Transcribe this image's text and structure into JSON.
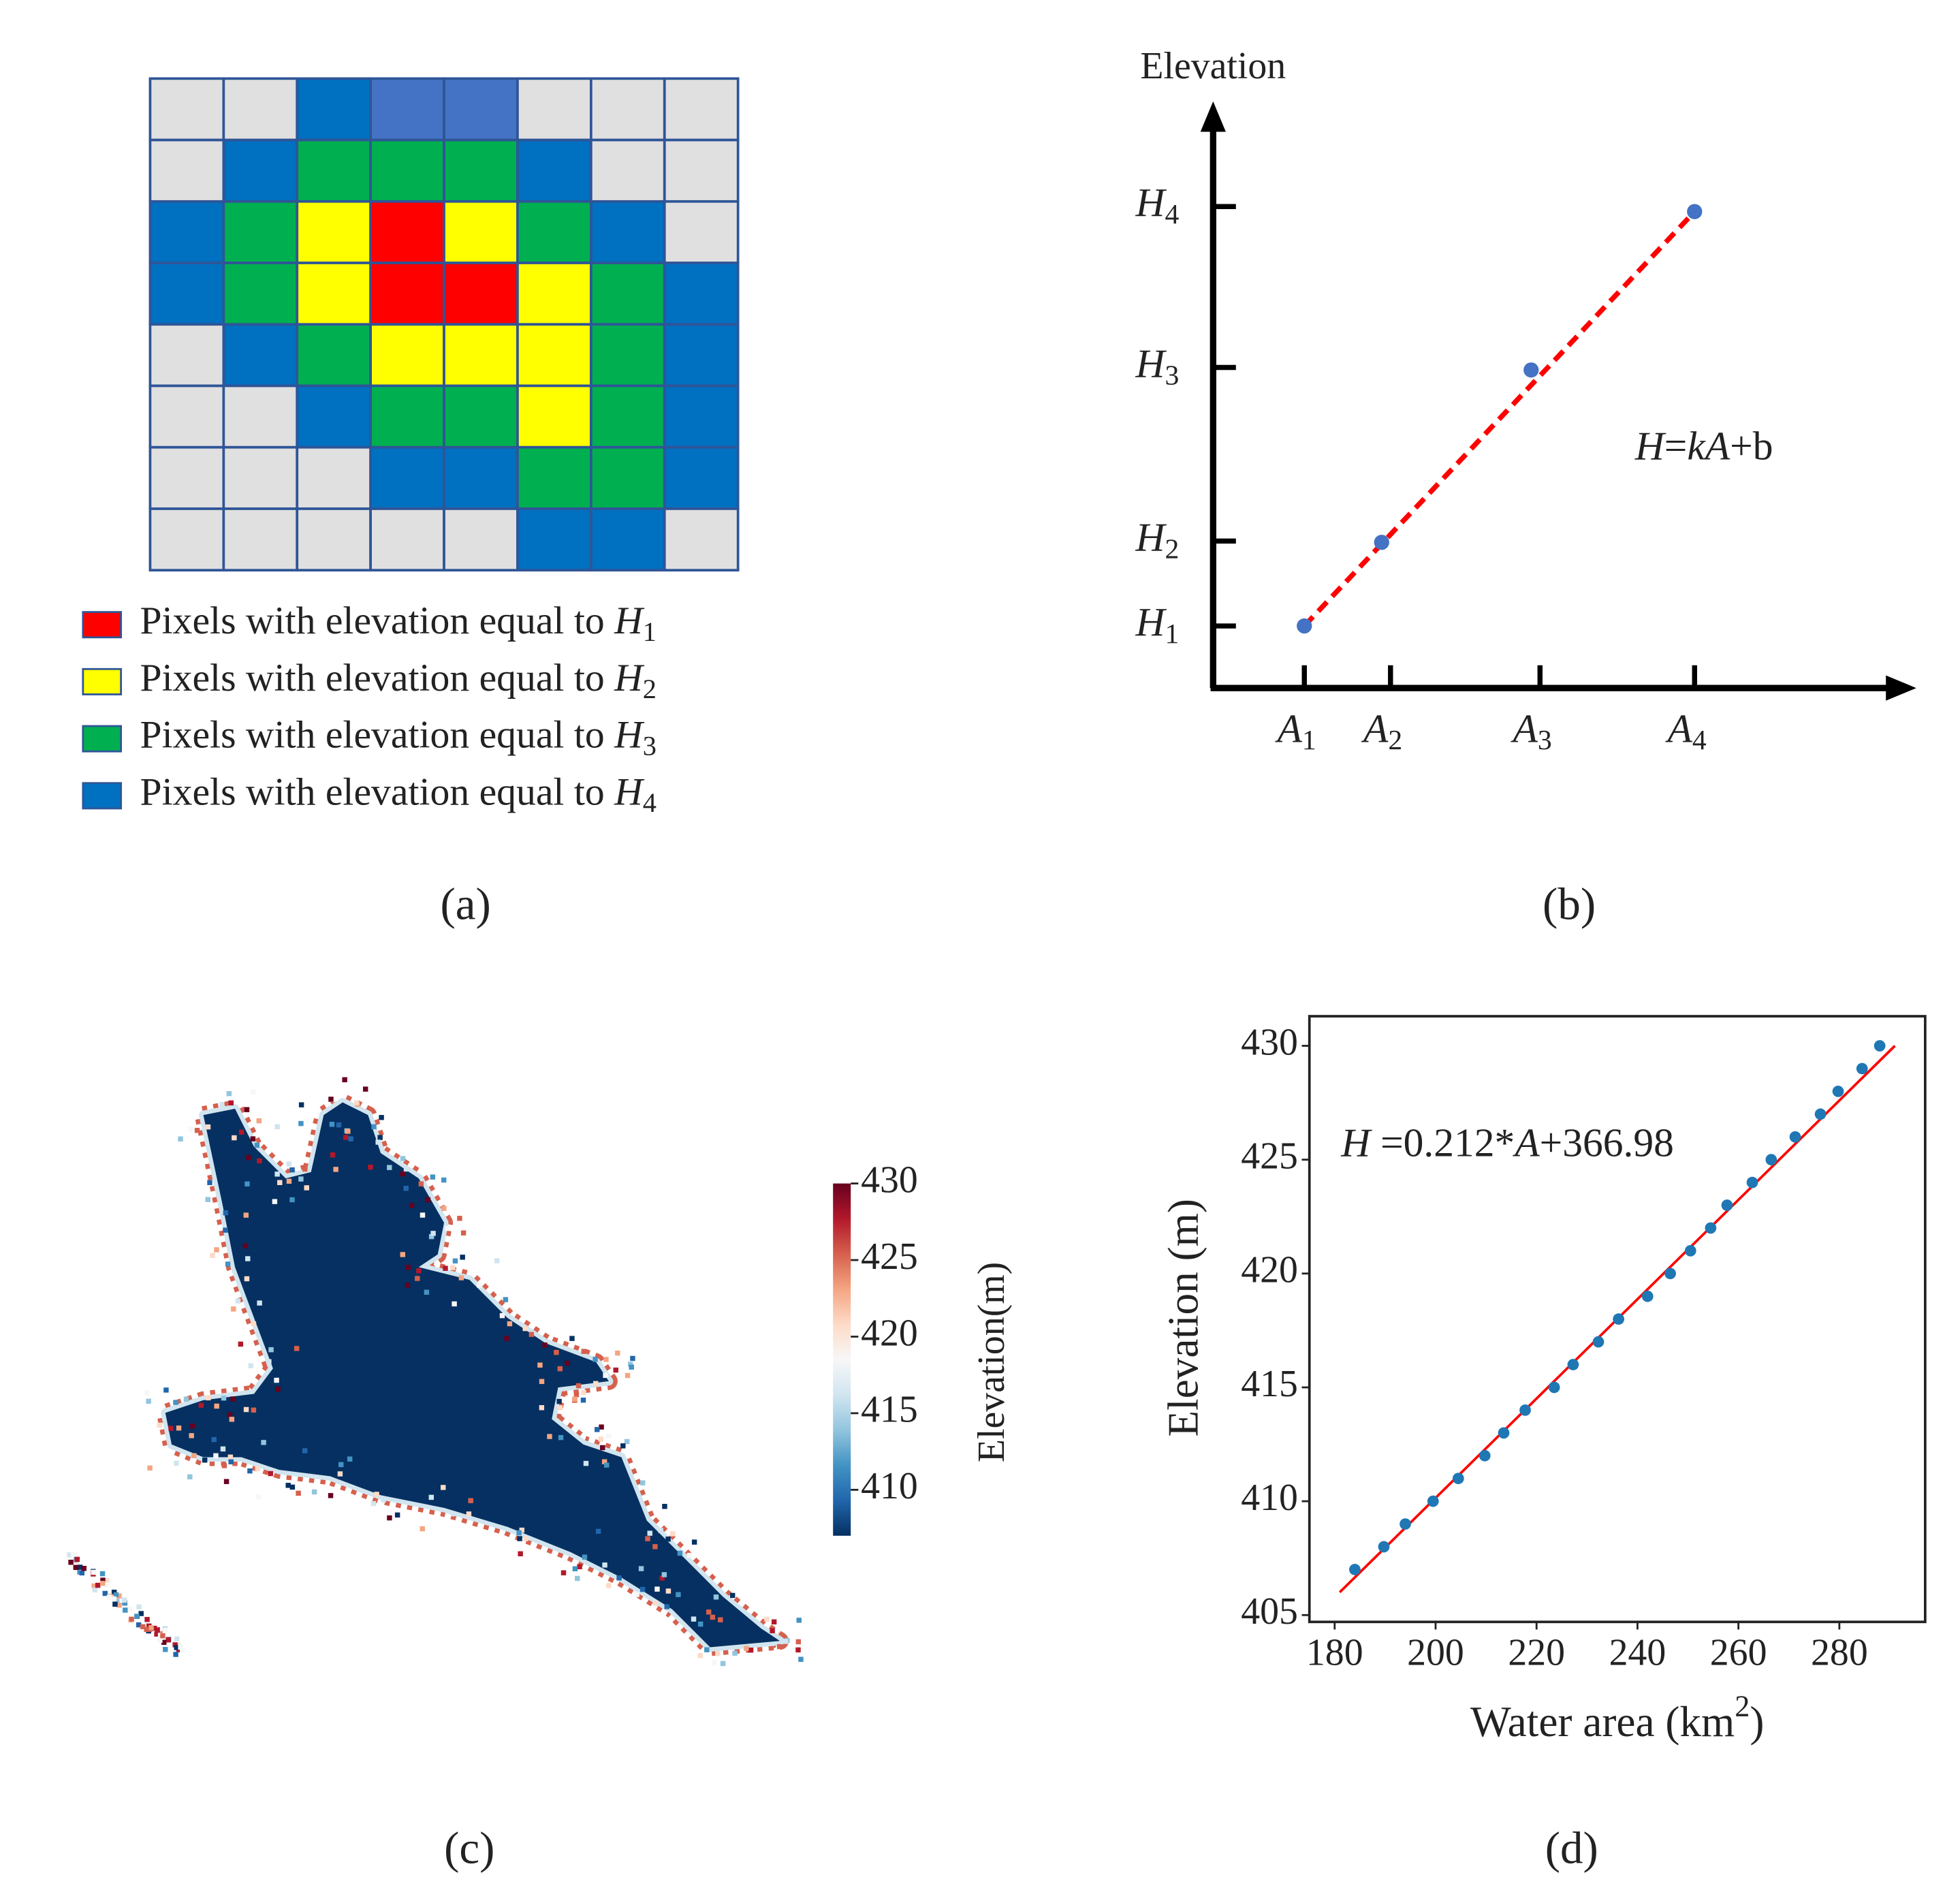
{
  "grid": {
    "label": "(a)",
    "rows": [
      [
        "#e0e0e0",
        "#e0e0e0",
        "#0070c0",
        "#4472c4",
        "#4472c4",
        "#e0e0e0",
        "#e0e0e0",
        "#e0e0e0"
      ],
      [
        "#e0e0e0",
        "#0070c0",
        "#00b050",
        "#00b050",
        "#00b050",
        "#0070c0",
        "#e0e0e0",
        "#e0e0e0"
      ],
      [
        "#0070c0",
        "#00b050",
        "#ffff00",
        "#ff0000",
        "#ffff00",
        "#00b050",
        "#0070c0",
        "#e0e0e0"
      ],
      [
        "#0070c0",
        "#00b050",
        "#ffff00",
        "#ff0000",
        "#ff0000",
        "#ffff00",
        "#00b050",
        "#0070c0"
      ],
      [
        "#e0e0e0",
        "#0070c0",
        "#00b050",
        "#ffff00",
        "#ffff00",
        "#ffff00",
        "#00b050",
        "#0070c0"
      ],
      [
        "#e0e0e0",
        "#e0e0e0",
        "#0070c0",
        "#00b050",
        "#00b050",
        "#ffff00",
        "#00b050",
        "#0070c0"
      ],
      [
        "#e0e0e0",
        "#e0e0e0",
        "#e0e0e0",
        "#0070c0",
        "#0070c0",
        "#00b050",
        "#00b050",
        "#0070c0"
      ],
      [
        "#e0e0e0",
        "#e0e0e0",
        "#e0e0e0",
        "#e0e0e0",
        "#e0e0e0",
        "#0070c0",
        "#0070c0",
        "#e0e0e0"
      ]
    ],
    "legend": [
      {
        "color": "#ff0000",
        "parts": [
          {
            "text": "Pixels with elevation equal to "
          },
          {
            "text": "H",
            "italic": true
          },
          {
            "text": "1",
            "sub": true
          }
        ]
      },
      {
        "color": "#ffff00",
        "parts": [
          {
            "text": "Pixels with elevation equal to "
          },
          {
            "text": "H",
            "italic": true
          },
          {
            "text": "2",
            "sub": true
          }
        ]
      },
      {
        "color": "#00b050",
        "parts": [
          {
            "text": "Pixels with elevation equal to "
          },
          {
            "text": "H",
            "italic": true
          },
          {
            "text": "3",
            "sub": true
          }
        ]
      },
      {
        "color": "#0070c0",
        "parts": [
          {
            "text": "Pixels with elevation equal to "
          },
          {
            "text": "H",
            "italic": true
          },
          {
            "text": "4",
            "sub": true
          }
        ]
      }
    ]
  },
  "schematic": {
    "label": "(b)",
    "y_label": "Elevation",
    "y_ticks": [
      {
        "parts": [
          {
            "text": "H",
            "italic": true
          },
          {
            "text": "1",
            "sub": true
          }
        ]
      },
      {
        "parts": [
          {
            "text": "H",
            "italic": true
          },
          {
            "text": "2",
            "sub": true
          }
        ]
      },
      {
        "parts": [
          {
            "text": "H",
            "italic": true
          },
          {
            "text": "3",
            "sub": true
          }
        ]
      },
      {
        "parts": [
          {
            "text": "H",
            "italic": true
          },
          {
            "text": "4",
            "sub": true
          }
        ]
      }
    ],
    "x_ticks": [
      {
        "parts": [
          {
            "text": "A",
            "italic": true
          },
          {
            "text": "1",
            "sub": true
          }
        ]
      },
      {
        "parts": [
          {
            "text": "A",
            "italic": true
          },
          {
            "text": "2",
            "sub": true
          }
        ]
      },
      {
        "parts": [
          {
            "text": "A",
            "italic": true
          },
          {
            "text": "3",
            "sub": true
          }
        ]
      },
      {
        "parts": [
          {
            "text": "A",
            "italic": true
          },
          {
            "text": "4",
            "sub": true
          }
        ]
      }
    ],
    "equation": {
      "parts": [
        {
          "text": "H",
          "italic": true
        },
        {
          "text": "="
        },
        {
          "text": "kA",
          "italic": true
        },
        {
          "text": "+b"
        }
      ]
    }
  },
  "map": {
    "label": "(c)",
    "colorbar": {
      "label": "Elevation(m)",
      "lim": [
        407,
        430
      ],
      "ticks": [
        410,
        415,
        420,
        425,
        430
      ],
      "colors": [
        "#053061",
        "#2166ac",
        "#4393c3",
        "#92c5de",
        "#d1e5f0",
        "#f7f7f7",
        "#fddbc7",
        "#f4a582",
        "#d6604d",
        "#b2182b",
        "#67001f"
      ]
    }
  },
  "chart_data": {
    "type": "scatter",
    "label": "(d)",
    "x_label": {
      "parts": [
        {
          "text": "Water area (km"
        },
        {
          "text": "2",
          "sup": true
        },
        {
          "text": ")"
        }
      ]
    },
    "y_label": "Elevation (m)",
    "annotation": {
      "parts": [
        {
          "text": "H",
          "italic": true
        },
        {
          "text": " =0.212*"
        },
        {
          "text": "A",
          "italic": true
        },
        {
          "text": "+366.98"
        }
      ]
    },
    "x": [
      184,
      189.75,
      194,
      199.5,
      204.5,
      209.75,
      213.5,
      217.75,
      223.5,
      227.25,
      232.25,
      236.25,
      242,
      246.5,
      250.5,
      254.5,
      257.75,
      262.75,
      266.5,
      271.25,
      276.25,
      279.75,
      284.5,
      288
    ],
    "values": [
      407,
      408,
      409,
      410,
      411,
      412,
      413,
      414,
      415,
      416,
      417,
      418,
      419,
      420,
      421,
      422,
      423,
      424,
      425,
      426,
      427,
      428,
      429,
      430
    ],
    "color": "#1f77b4",
    "fit": {
      "x": [
        181,
        291
      ],
      "values": [
        406,
        430
      ],
      "color": "#ff0000"
    },
    "xlim": [
      175,
      297
    ],
    "ylim": [
      404.7,
      431.3
    ],
    "xticks": [
      180,
      200,
      220,
      240,
      260,
      280
    ],
    "yticks": [
      405,
      410,
      415,
      420,
      425,
      430
    ]
  }
}
